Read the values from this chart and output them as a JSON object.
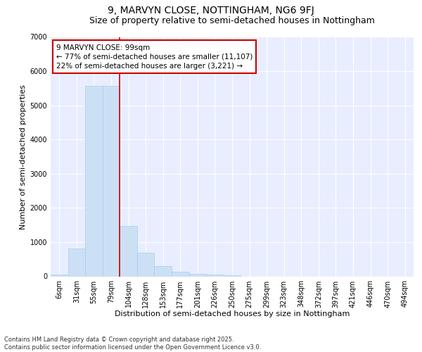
{
  "title": "9, MARVYN CLOSE, NOTTINGHAM, NG6 9FJ",
  "subtitle": "Size of property relative to semi-detached houses in Nottingham",
  "xlabel": "Distribution of semi-detached houses by size in Nottingham",
  "ylabel": "Number of semi-detached properties",
  "categories": [
    "6sqm",
    "31sqm",
    "55sqm",
    "79sqm",
    "104sqm",
    "128sqm",
    "153sqm",
    "177sqm",
    "201sqm",
    "226sqm",
    "250sqm",
    "275sqm",
    "299sqm",
    "323sqm",
    "348sqm",
    "372sqm",
    "397sqm",
    "421sqm",
    "446sqm",
    "470sqm",
    "494sqm"
  ],
  "values": [
    50,
    820,
    5570,
    5570,
    1480,
    680,
    290,
    130,
    80,
    50,
    30,
    0,
    0,
    0,
    0,
    0,
    0,
    0,
    0,
    0,
    0
  ],
  "bar_color": "#cce0f5",
  "bar_edge_color": "#aaccee",
  "vline_x_index": 4,
  "vline_color": "#cc0000",
  "annotation_text": "9 MARVYN CLOSE: 99sqm\n← 77% of semi-detached houses are smaller (11,107)\n22% of semi-detached houses are larger (3,221) →",
  "annotation_box_color": "#cc0000",
  "ylim": [
    0,
    7000
  ],
  "yticks": [
    0,
    1000,
    2000,
    3000,
    4000,
    5000,
    6000,
    7000
  ],
  "background_color": "#e8eeff",
  "grid_color": "#ffffff",
  "footer_line1": "Contains HM Land Registry data © Crown copyright and database right 2025.",
  "footer_line2": "Contains public sector information licensed under the Open Government Licence v3.0.",
  "title_fontsize": 10,
  "subtitle_fontsize": 9,
  "axis_label_fontsize": 8,
  "tick_fontsize": 7,
  "annotation_fontsize": 7.5,
  "footer_fontsize": 6
}
